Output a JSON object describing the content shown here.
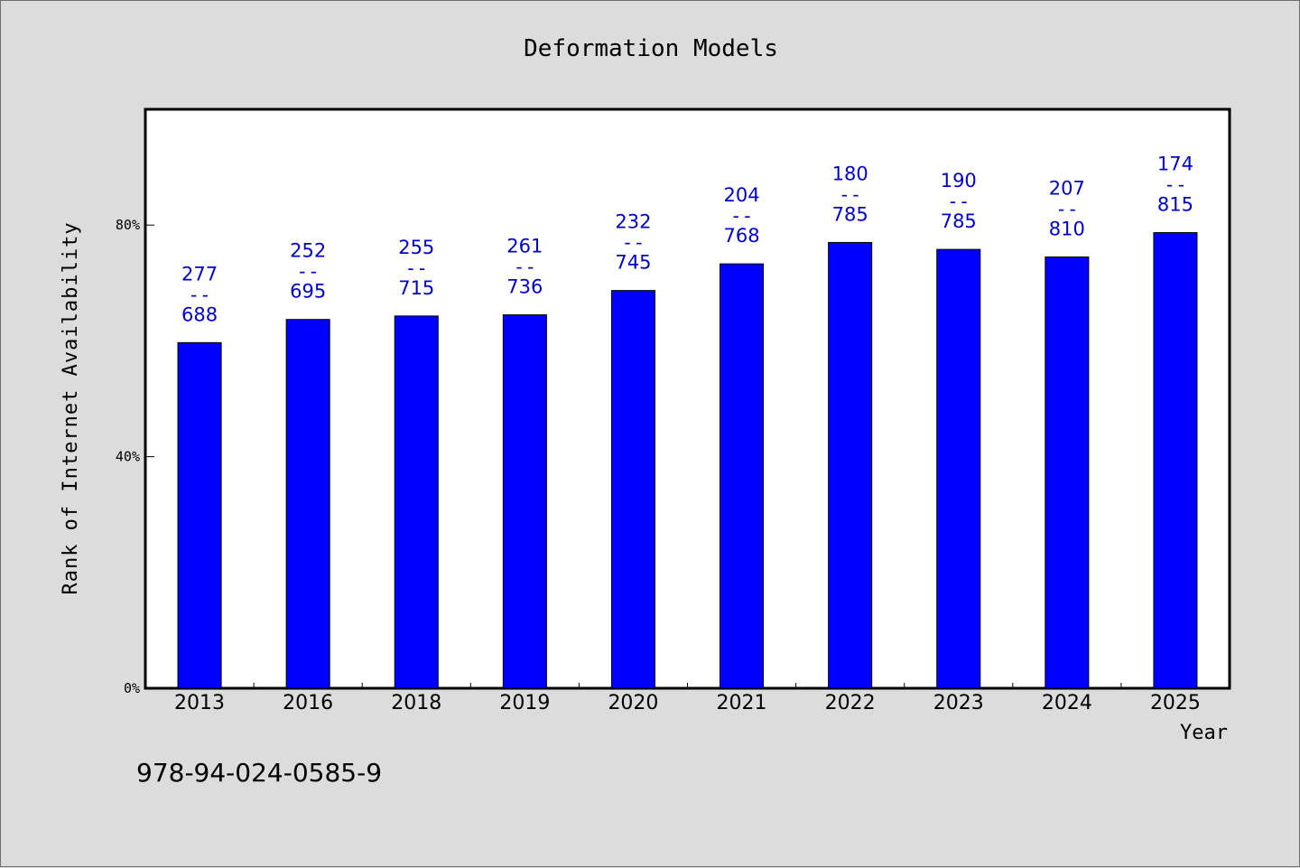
{
  "chart_data": {
    "type": "bar",
    "title": "Deformation Models",
    "xlabel": "Year",
    "ylabel": "Rank of Internet Availability",
    "ylim": [
      0,
      100
    ],
    "yticks": [
      0,
      40,
      80
    ],
    "ytick_labels": [
      "0%",
      "40%",
      "80%"
    ],
    "categories": [
      "2013",
      "2016",
      "2018",
      "2019",
      "2020",
      "2021",
      "2022",
      "2023",
      "2024",
      "2025"
    ],
    "values": [
      59.7,
      63.7,
      64.3,
      64.5,
      68.7,
      73.3,
      77.0,
      75.8,
      74.5,
      78.7
    ],
    "data_labels": [
      {
        "top": "277",
        "separator": "--",
        "bottom": "688"
      },
      {
        "top": "252",
        "separator": "--",
        "bottom": "695"
      },
      {
        "top": "255",
        "separator": "--",
        "bottom": "715"
      },
      {
        "top": "261",
        "separator": "--",
        "bottom": "736"
      },
      {
        "top": "232",
        "separator": "--",
        "bottom": "745"
      },
      {
        "top": "204",
        "separator": "--",
        "bottom": "768"
      },
      {
        "top": "180",
        "separator": "--",
        "bottom": "785"
      },
      {
        "top": "190",
        "separator": "--",
        "bottom": "785"
      },
      {
        "top": "207",
        "separator": "--",
        "bottom": "810"
      },
      {
        "top": "174",
        "separator": "--",
        "bottom": "815"
      }
    ],
    "bar_color": "#0000ff",
    "label_color": "#0000cc",
    "plot_background": "#ffffff",
    "grid": false,
    "legend": "none"
  },
  "footer": {
    "isbn": "978-94-024-0585-9"
  }
}
